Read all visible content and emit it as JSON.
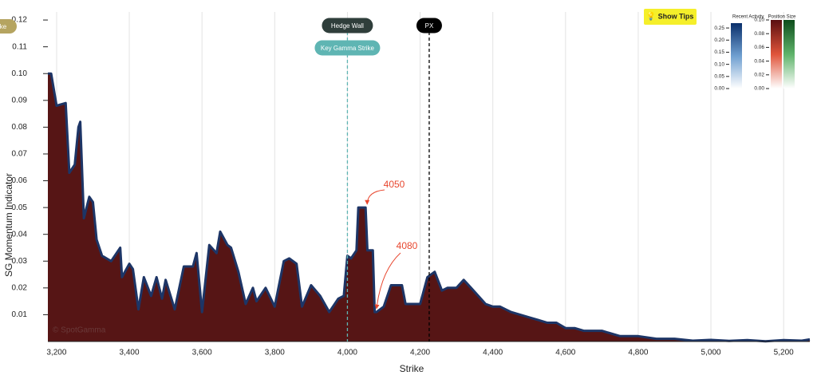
{
  "chart_data": {
    "type": "area",
    "ylabel": "SG Momentum Indicator",
    "xlabel": "Strike",
    "watermark": "© SpotGamma",
    "xlim": [
      3176,
      5272
    ],
    "ylim": [
      0,
      0.123
    ],
    "xticks": [
      {
        "value": 3200,
        "label": "3,200"
      },
      {
        "value": 3400,
        "label": "3,400"
      },
      {
        "value": 3600,
        "label": "3,600"
      },
      {
        "value": 3800,
        "label": "3,800"
      },
      {
        "value": 4000,
        "label": "4,000"
      },
      {
        "value": 4200,
        "label": "4,200"
      },
      {
        "value": 4400,
        "label": "4,400"
      },
      {
        "value": 4600,
        "label": "4,600"
      },
      {
        "value": 4800,
        "label": "4,800"
      },
      {
        "value": 5000,
        "label": "5,000"
      },
      {
        "value": 5200,
        "label": "5,200"
      }
    ],
    "yticks": [
      0.01,
      0.02,
      0.03,
      0.04,
      0.05,
      0.06,
      0.07,
      0.08,
      0.09,
      {
        "value": 0.1,
        "label": "0.10"
      },
      0.11,
      0.12
    ],
    "grid": true,
    "color": "#561515",
    "line_color": "#1d3566",
    "x": [
      3176,
      3185,
      3200,
      3225,
      3235,
      3250,
      3260,
      3265,
      3275,
      3290,
      3300,
      3310,
      3325,
      3350,
      3375,
      3380,
      3400,
      3410,
      3425,
      3440,
      3460,
      3475,
      3490,
      3500,
      3525,
      3550,
      3575,
      3585,
      3600,
      3620,
      3640,
      3650,
      3670,
      3680,
      3700,
      3720,
      3740,
      3750,
      3775,
      3800,
      3825,
      3840,
      3860,
      3875,
      3900,
      3925,
      3950,
      3975,
      3990,
      4000,
      4010,
      4025,
      4030,
      4050,
      4055,
      4070,
      4075,
      4080,
      4100,
      4120,
      4150,
      4160,
      4180,
      4200,
      4220,
      4240,
      4260,
      4275,
      4300,
      4320,
      4340,
      4360,
      4380,
      4400,
      4420,
      4450,
      4475,
      4500,
      4525,
      4550,
      4575,
      4600,
      4625,
      4650,
      4700,
      4750,
      4800,
      4850,
      4900,
      4950,
      5000,
      5050,
      5100,
      5150,
      5200,
      5250,
      5272
    ],
    "values": [
      0.1,
      0.1,
      0.088,
      0.089,
      0.063,
      0.066,
      0.08,
      0.082,
      0.046,
      0.054,
      0.052,
      0.038,
      0.032,
      0.03,
      0.035,
      0.024,
      0.029,
      0.027,
      0.012,
      0.024,
      0.017,
      0.024,
      0.016,
      0.023,
      0.012,
      0.028,
      0.028,
      0.033,
      0.011,
      0.036,
      0.033,
      0.041,
      0.036,
      0.035,
      0.026,
      0.014,
      0.02,
      0.015,
      0.02,
      0.013,
      0.03,
      0.031,
      0.029,
      0.013,
      0.021,
      0.017,
      0.011,
      0.016,
      0.017,
      0.032,
      0.031,
      0.034,
      0.05,
      0.05,
      0.034,
      0.034,
      0.011,
      0.011,
      0.013,
      0.021,
      0.021,
      0.014,
      0.014,
      0.014,
      0.024,
      0.026,
      0.019,
      0.02,
      0.02,
      0.023,
      0.02,
      0.017,
      0.014,
      0.013,
      0.013,
      0.011,
      0.01,
      0.009,
      0.008,
      0.007,
      0.007,
      0.005,
      0.005,
      0.004,
      0.004,
      0.002,
      0.002,
      0.001,
      0.001,
      0.0003,
      0.0006,
      0.0002,
      0.0005,
      0.0001,
      0.0005,
      0.0003,
      0.0008
    ],
    "reference_lines": [
      {
        "name": "Key Gamma Strike",
        "x": 4000,
        "color": "#5fb5b3"
      },
      {
        "name": "PX",
        "x": 4225,
        "color": "#000000"
      }
    ],
    "buttons": [
      "Hedge Wall",
      "Show Tips",
      "ke"
    ],
    "annotations": [
      {
        "text": "4050",
        "x": 4050,
        "y": 0.05
      },
      {
        "text": "4080",
        "x": 4080,
        "y": 0.011
      }
    ],
    "color_scales": [
      {
        "name": "Recent Activity",
        "lim": [
          0,
          0.27
        ],
        "ticks": [
          {
            "value": 0,
            "label": "0.00"
          },
          0.05,
          {
            "value": 0.1,
            "label": "0.10"
          },
          0.15,
          {
            "value": 0.2,
            "label": "0.20"
          },
          0.25
        ]
      },
      {
        "name": "Position Size",
        "lim": [
          0,
          0.1
        ],
        "ticks": [
          {
            "value": 0,
            "label": "0.00"
          },
          0.02,
          0.04,
          0.06,
          0.08,
          {
            "value": 0.1,
            "label": "0.10"
          }
        ]
      }
    ]
  }
}
